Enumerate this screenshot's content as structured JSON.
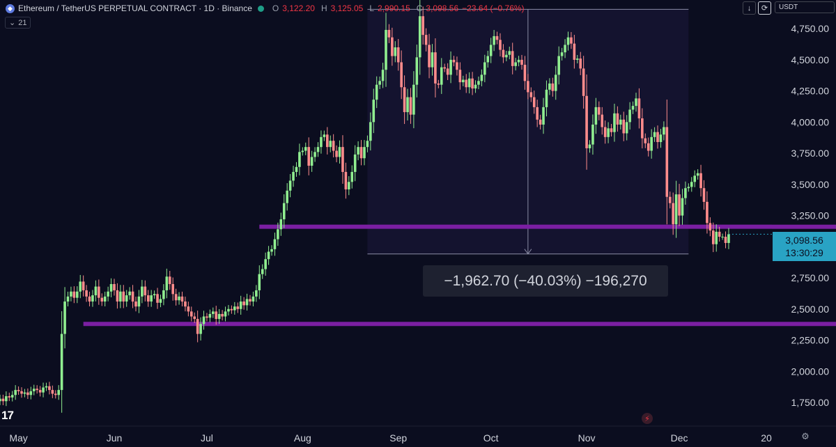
{
  "header": {
    "symbol": "Ethereum / TetherUS PERPETUAL CONTRACT · 1D · Binance",
    "ohlc": {
      "open_label": "O",
      "open": "3,122.20",
      "high_label": "H",
      "high": "3,125.05",
      "low_label": "L",
      "low": "2,990.15",
      "close_label": "C",
      "close": "3,098.56",
      "change": "−23.64 (−0.76%)"
    },
    "indicator_label": "21",
    "currency": "USDT"
  },
  "price_tag": {
    "price": "3,098.56",
    "countdown": "13:30:29"
  },
  "measure": {
    "text": "−1,962.70 (−40.03%) −196,270",
    "from_price": 4905,
    "to_price": 2942
  },
  "levels": [
    {
      "name": "upper-support",
      "price": 3160,
      "color": "#7b1fa2"
    },
    {
      "name": "lower-support",
      "price": 2380,
      "color": "#7b1fa2"
    }
  ],
  "colors": {
    "up": "#90ee90",
    "down": "#ff8c8c",
    "level": "#7b1fa2",
    "accent": "#29a3c4"
  },
  "chart_data": {
    "type": "candlestick",
    "y_ticks": [
      1750,
      2000,
      2250,
      2500,
      2750,
      3250,
      3500,
      3750,
      4000,
      4250,
      4500,
      4750
    ],
    "y_tick_labels": [
      "1,750.00",
      "2,000.00",
      "2,250.00",
      "2,500.00",
      "2,750.00",
      "3,250.00",
      "3,500.00",
      "3,750.00",
      "4,000.00",
      "4,250.00",
      "4,500.00",
      "4,750.00"
    ],
    "x_tick_labels": [
      "May",
      "Jun",
      "Jul",
      "Aug",
      "Sep",
      "Oct",
      "Nov",
      "Dec",
      "20"
    ],
    "ylim": [
      1560,
      4980
    ],
    "xlim": [
      "2025-04-25",
      "2025-12-31"
    ],
    "start_date": "2025-04-25",
    "closes": [
      1780,
      1760,
      1800,
      1790,
      1810,
      1850,
      1840,
      1820,
      1830,
      1810,
      1840,
      1860,
      1850,
      1830,
      1870,
      1880,
      1850,
      1820,
      1810,
      1850,
      2300,
      2560,
      2600,
      2640,
      2590,
      2640,
      2720,
      2650,
      2600,
      2560,
      2610,
      2680,
      2590,
      2560,
      2600,
      2640,
      2700,
      2650,
      2560,
      2640,
      2560,
      2610,
      2640,
      2560,
      2520,
      2600,
      2680,
      2610,
      2560,
      2610,
      2620,
      2550,
      2580,
      2650,
      2760,
      2700,
      2620,
      2570,
      2600,
      2560,
      2520,
      2480,
      2440,
      2420,
      2300,
      2380,
      2440,
      2430,
      2460,
      2480,
      2420,
      2460,
      2440,
      2480,
      2500,
      2490,
      2520,
      2500,
      2560,
      2530,
      2580,
      2560,
      2600,
      2650,
      2780,
      2820,
      2900,
      2960,
      2980,
      3060,
      3140,
      3220,
      3350,
      3450,
      3530,
      3600,
      3640,
      3760,
      3770,
      3800,
      3650,
      3720,
      3760,
      3800,
      3880,
      3900,
      3800,
      3850,
      3770,
      3720,
      3800,
      3600,
      3460,
      3520,
      3600,
      3740,
      3800,
      3710,
      3800,
      3850,
      4000,
      4180,
      4300,
      4330,
      4420,
      4740,
      4680,
      4530,
      4600,
      4480,
      4280,
      4080,
      4200,
      4060,
      4300,
      4520,
      4850,
      4700,
      4620,
      4440,
      4560,
      4310,
      4300,
      4440,
      4430,
      4380,
      4500,
      4480,
      4420,
      4320,
      4340,
      4280,
      4350,
      4270,
      4300,
      4330,
      4380,
      4480,
      4530,
      4620,
      4690,
      4660,
      4580,
      4520,
      4540,
      4570,
      4450,
      4480,
      4500,
      4460,
      4330,
      4240,
      4200,
      4120,
      4020,
      3980,
      4120,
      4260,
      4310,
      4250,
      4380,
      4530,
      4560,
      4620,
      4680,
      4630,
      4500,
      4510,
      4430,
      4210,
      3790,
      3820,
      3980,
      4120,
      4060,
      3960,
      3880,
      3950,
      3920,
      4070,
      3980,
      4020,
      3910,
      4000,
      4100,
      4130,
      4190,
      4030,
      3870,
      3830,
      3770,
      3880,
      3920,
      3840,
      3900,
      3960,
      3400,
      3350,
      3180,
      3420,
      3250,
      3390,
      3470,
      3480,
      3520,
      3570,
      3590,
      3470,
      3360,
      3190,
      3130,
      3020,
      3120,
      3080,
      3080,
      3030,
      3100
    ]
  }
}
